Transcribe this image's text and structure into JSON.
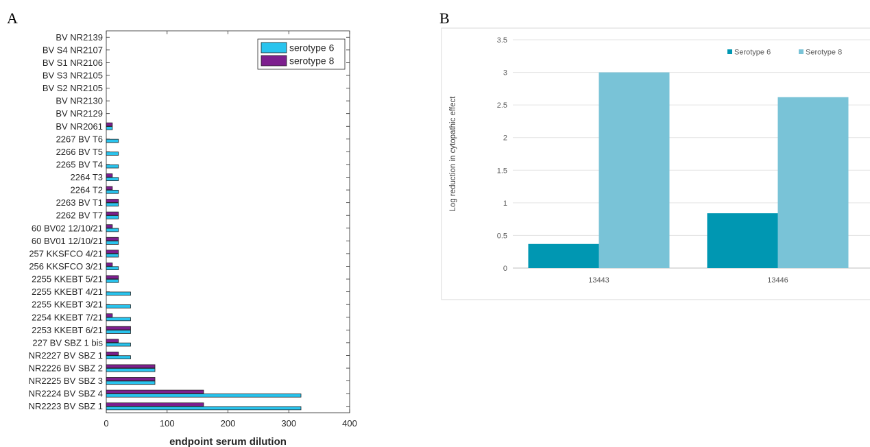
{
  "panels": {
    "a_label": "A",
    "b_label": "B"
  },
  "chart_data": [
    {
      "type": "bar",
      "orientation": "horizontal",
      "categories": [
        "NR2223 BV SBZ 1",
        "NR2224 BV SBZ 4",
        "NR2225 BV SBZ 3",
        "NR2226 BV SBZ 2",
        "NR2227 BV SBZ 1",
        "227 BV SBZ 1 bis",
        "2253 KKEBT 6/21",
        "2254 KKEBT 7/21",
        "2255 KKEBT 3/21",
        "2255 KKEBT 4/21",
        "2255 KKEBT 5/21",
        "256 KKSFCO 3/21",
        "257 KKSFCO 4/21",
        "60 BV01 12/10/21",
        "60 BV02 12/10/21",
        "2262 BV T7",
        "2263 BV T1",
        "2264 T2",
        "2264 T3",
        "2265 BV T4",
        "2266 BV T5",
        "2267 BV T6",
        "BV NR2061",
        "BV NR2129",
        "BV NR2130",
        "BV S2 NR2105",
        "BV S3 NR2105",
        "BV S1 NR2106",
        "BV S4 NR2107",
        "BV NR2139"
      ],
      "series": [
        {
          "name": "serotype 6",
          "color": "#29c4ee",
          "values": [
            320,
            320,
            80,
            80,
            40,
            40,
            40,
            40,
            40,
            40,
            20,
            20,
            20,
            20,
            20,
            20,
            20,
            20,
            20,
            20,
            20,
            20,
            10,
            0,
            0,
            0,
            0,
            0,
            0,
            0
          ]
        },
        {
          "name": "serotype 8",
          "color": "#7d1f8e",
          "values": [
            160,
            160,
            80,
            80,
            20,
            20,
            40,
            10,
            0,
            0,
            20,
            10,
            20,
            20,
            10,
            20,
            20,
            10,
            10,
            0,
            0,
            0,
            10,
            0,
            0,
            0,
            0,
            0,
            0,
            0
          ]
        }
      ],
      "xlabel": "endpoint serum dilution",
      "xlim": [
        0,
        400
      ],
      "xticks": [
        0,
        100,
        200,
        300,
        400
      ],
      "legend_position": "top-right",
      "grid": false
    },
    {
      "type": "bar",
      "categories": [
        "13443",
        "13446"
      ],
      "series": [
        {
          "name": "Serotype 6",
          "color": "#0097b2",
          "values": [
            0.37,
            0.84
          ]
        },
        {
          "name": "Serotype 8",
          "color": "#79c3d7",
          "values": [
            3.0,
            2.62
          ]
        }
      ],
      "ylabel": "Log reduction in cytopathic effect",
      "ylim": [
        0,
        3.5
      ],
      "yticks": [
        "0",
        "0.5",
        "1",
        "1.5",
        "2",
        "2.5",
        "3",
        "3.5"
      ],
      "legend_position": "top-right",
      "grid": true
    }
  ]
}
